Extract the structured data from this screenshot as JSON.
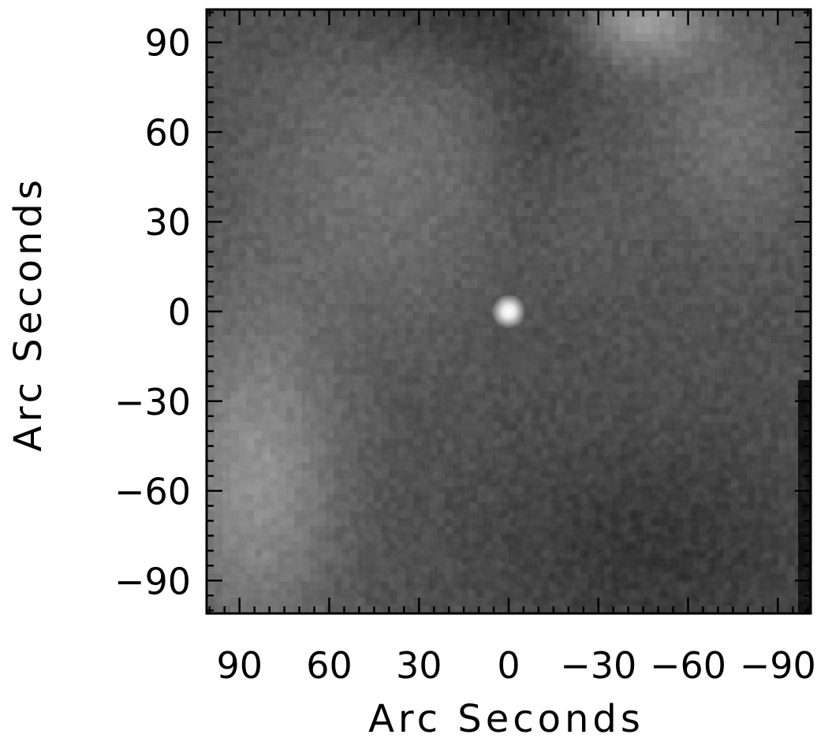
{
  "chart_data": {
    "type": "heatmap",
    "title": "",
    "xlabel": "Arc Seconds",
    "ylabel": "Arc Seconds",
    "xlim": [
      101,
      -101
    ],
    "ylim": [
      -101,
      101
    ],
    "x_reversed": true,
    "colormap": "grayscale",
    "x_ticks": [
      {
        "value": 90,
        "label": "90"
      },
      {
        "value": 60,
        "label": "60"
      },
      {
        "value": 30,
        "label": "30"
      },
      {
        "value": 0,
        "label": "0"
      },
      {
        "value": -30,
        "label": "−30"
      },
      {
        "value": -60,
        "label": "−60"
      },
      {
        "value": -90,
        "label": "−90"
      }
    ],
    "y_ticks": [
      {
        "value": 90,
        "label": "90"
      },
      {
        "value": 60,
        "label": "60"
      },
      {
        "value": 30,
        "label": "30"
      },
      {
        "value": 0,
        "label": "0"
      },
      {
        "value": -30,
        "label": "−30"
      },
      {
        "value": -60,
        "label": "−60"
      },
      {
        "value": -90,
        "label": "−90"
      }
    ],
    "features": [
      {
        "name": "bright point source",
        "x": 0,
        "y": 0
      },
      {
        "name": "bright region",
        "x": 80,
        "y": -60
      },
      {
        "name": "bright region",
        "x": -50,
        "y": 95
      },
      {
        "name": "dark region",
        "x": -45,
        "y": -80
      }
    ]
  }
}
